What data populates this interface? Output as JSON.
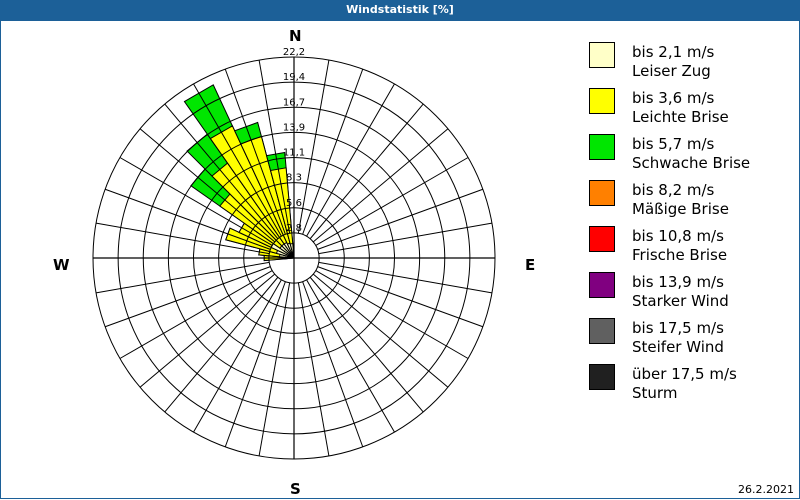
{
  "title": "Windstatistik [%]",
  "date": "26.2.2021",
  "cardinals": {
    "N": "N",
    "E": "E",
    "S": "S",
    "W": "W"
  },
  "legend": [
    {
      "range": "bis 2,1 m/s",
      "name": "Leiser Zug",
      "color": "#ffffc8"
    },
    {
      "range": "bis 3,6 m/s",
      "name": "Leichte Brise",
      "color": "#ffff00"
    },
    {
      "range": "bis 5,7 m/s",
      "name": "Schwache Brise",
      "color": "#00e600"
    },
    {
      "range": "bis 8,2 m/s",
      "name": "Mäßige Brise",
      "color": "#ff8000"
    },
    {
      "range": "bis 10,8 m/s",
      "name": "Frische Brise",
      "color": "#ff0000"
    },
    {
      "range": "bis 13,9 m/s",
      "name": "Starker Wind",
      "color": "#800080"
    },
    {
      "range": "bis 17,5 m/s",
      "name": "Steifer Wind",
      "color": "#606060"
    },
    {
      "range": "über 17,5 m/s",
      "name": "Sturm",
      "color": "#202020"
    }
  ],
  "chart_data": {
    "type": "polar-bar (wind rose)",
    "title": "Windstatistik [%]",
    "unit": "%",
    "radial_ticks": [
      "2,8",
      "5,6",
      "8,3",
      "11,1",
      "13,9",
      "16,7",
      "19,4",
      "22,2"
    ],
    "radial_max": 22.2,
    "sector_width_deg": 10,
    "series": [
      "bis 2,1 m/s",
      "bis 3,6 m/s",
      "bis 5,7 m/s",
      "bis 8,2 m/s",
      "bis 10,8 m/s",
      "bis 13,9 m/s",
      "bis 17,5 m/s",
      "über 17,5 m/s"
    ],
    "sectors": [
      {
        "dir": 270,
        "cumulative": [
          1.3,
          3.3,
          3.3
        ]
      },
      {
        "dir": 280,
        "cumulative": [
          1.6,
          3.9,
          3.9
        ]
      },
      {
        "dir": 290,
        "cumulative": [
          2.0,
          7.8,
          7.8
        ]
      },
      {
        "dir": 300,
        "cumulative": [
          2.8,
          6.7,
          6.7
        ]
      },
      {
        "dir": 310,
        "cumulative": [
          1.9,
          10.0,
          13.9
        ]
      },
      {
        "dir": 320,
        "cumulative": [
          1.9,
          12.8,
          16.7
        ]
      },
      {
        "dir": 330,
        "cumulative": [
          1.9,
          16.1,
          21.1
        ]
      },
      {
        "dir": 340,
        "cumulative": [
          1.7,
          13.9,
          15.5
        ]
      },
      {
        "dir": 350,
        "cumulative": [
          1.6,
          10.0,
          11.7
        ]
      }
    ]
  }
}
